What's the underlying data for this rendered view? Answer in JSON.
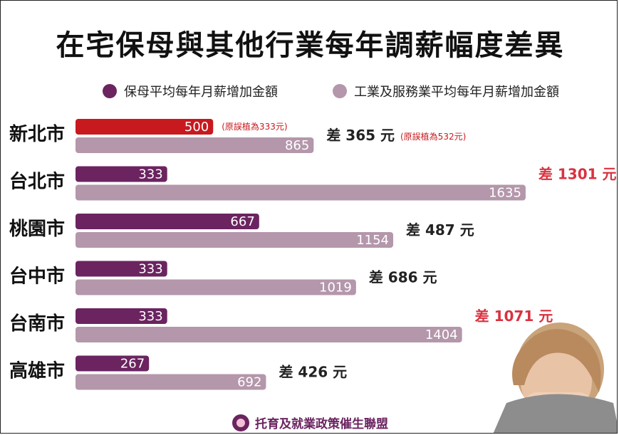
{
  "title": "在宅保母與其他行業每年調薪幅度差異",
  "legend": [
    {
      "label": "保母平均每年月薪增加金額",
      "color": "#6b2460"
    },
    {
      "label": "工業及服務業平均每年月薪增加金額",
      "color": "#b497ab"
    }
  ],
  "chart_data": {
    "type": "bar",
    "orientation": "horizontal",
    "categories": [
      "新北市",
      "台北市",
      "桃園市",
      "台中市",
      "台南市",
      "高雄市"
    ],
    "series": [
      {
        "name": "保母平均每年月薪增加金額",
        "values": [
          500,
          333,
          667,
          333,
          333,
          267
        ],
        "color": "#6b2460"
      },
      {
        "name": "工業及服務業平均每年月薪增加金額",
        "values": [
          865,
          1635,
          1154,
          1019,
          1404,
          692
        ],
        "color": "#b497ab"
      }
    ],
    "differences": [
      {
        "prefix": "差",
        "value": "365",
        "unit": "元"
      },
      {
        "prefix": "差",
        "value": "1301",
        "unit": "元"
      },
      {
        "prefix": "差",
        "value": "487",
        "unit": "元"
      },
      {
        "prefix": "差",
        "value": "686",
        "unit": "元"
      },
      {
        "prefix": "差",
        "value": "1071",
        "unit": "元"
      },
      {
        "prefix": "差",
        "value": "426",
        "unit": "元"
      }
    ],
    "highlight": {
      "category": "新北市",
      "bar_color": "#c8191e",
      "note_nanny": "(原誤植為333元)",
      "note_diff": "(原誤植為532元)"
    },
    "highlight_diff_color": "#d93240",
    "normal_diff_color": "#222222"
  },
  "footer": {
    "org": "托育及就業政策催生聯盟"
  }
}
